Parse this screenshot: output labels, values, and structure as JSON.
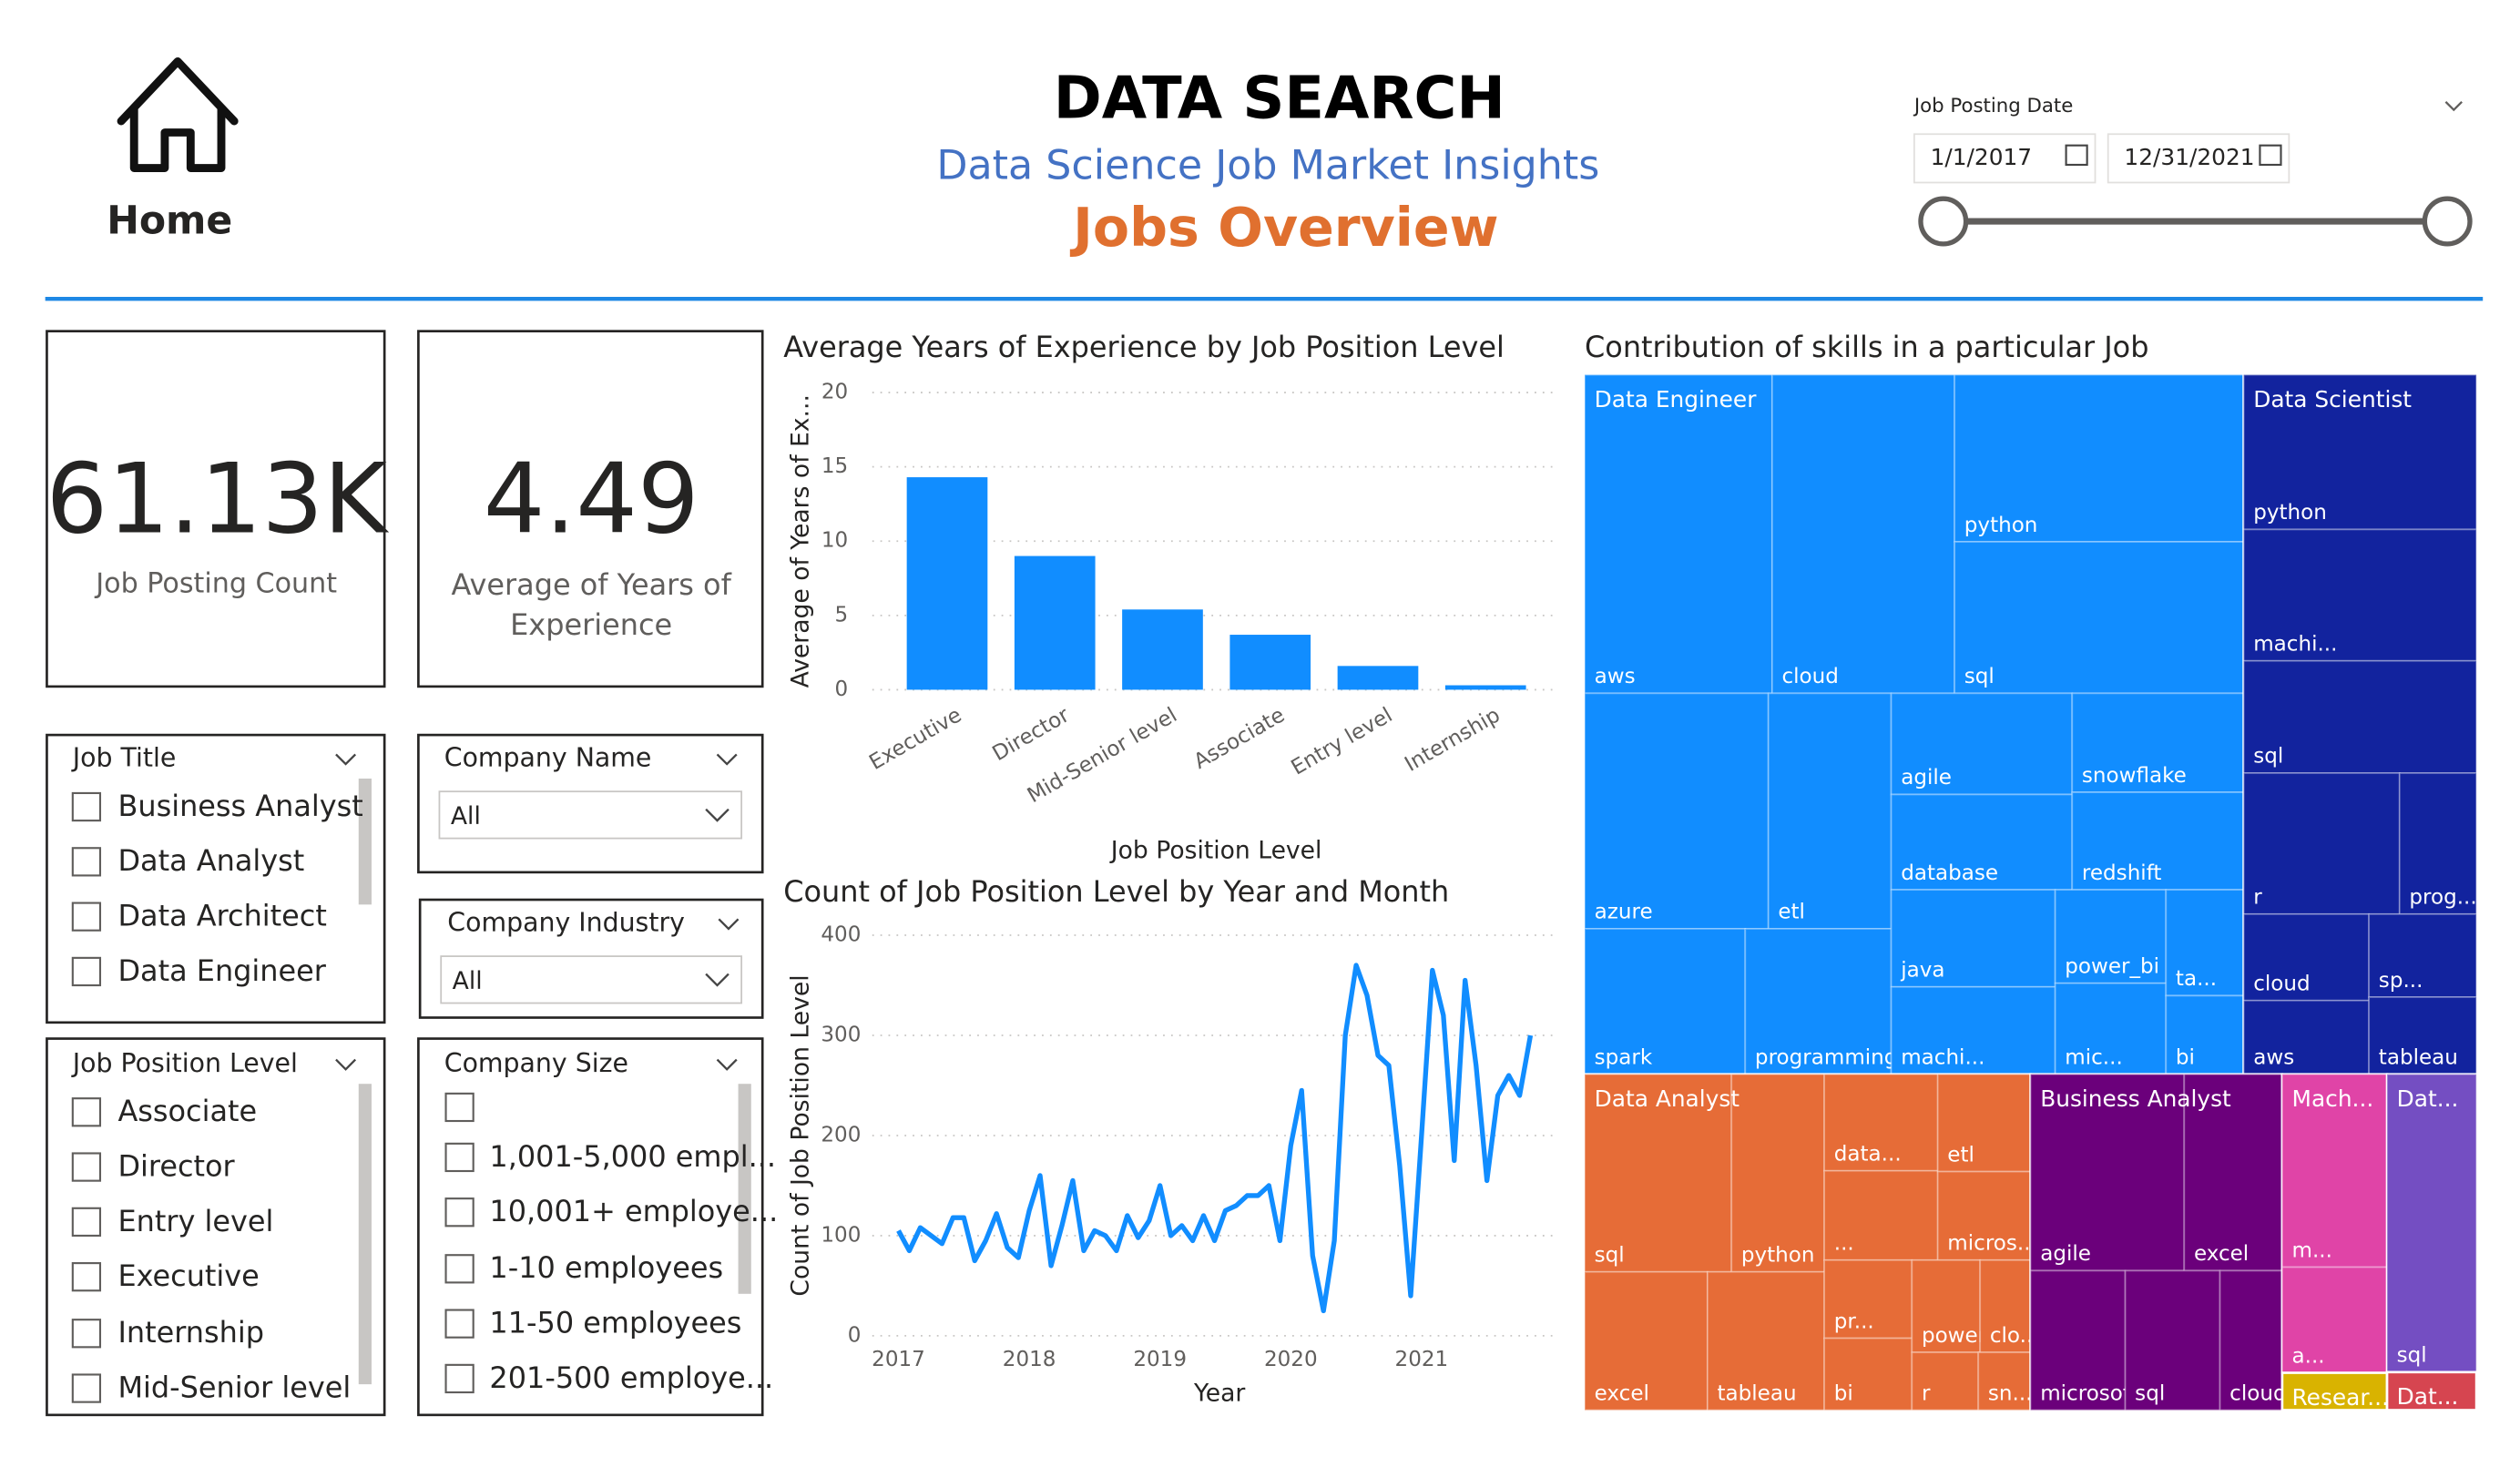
{
  "header": {
    "home": "Home",
    "title": "DATA SEARCH",
    "subtitle": "Data Science Job Market Insights",
    "page": "Jobs Overview"
  },
  "date_filter": {
    "label": "Job Posting Date",
    "start": "1/1/2017",
    "end": "12/31/2021"
  },
  "cards": [
    {
      "value": "61.13K",
      "label": "Job Posting Count"
    },
    {
      "value": "4.49",
      "label": "Average of Years of Experience"
    }
  ],
  "slicers": {
    "job_title": {
      "title": "Job Title",
      "items": [
        "Business Analyst",
        "Data Analyst",
        "Data Architect",
        "Data Engineer"
      ]
    },
    "company_name": {
      "title": "Company Name",
      "selection": "All"
    },
    "company_industry": {
      "title": "Company Industry",
      "selection": "All"
    },
    "job_position_level": {
      "title": "Job Position Level",
      "items": [
        "Associate",
        "Director",
        "Entry level",
        "Executive",
        "Internship",
        "Mid-Senior level"
      ]
    },
    "company_size": {
      "title": "Company Size",
      "items": [
        "1,001-5,000 empl...",
        "10,001+ employe...",
        "1-10 employees",
        "11-50 employees",
        "201-500 employe..."
      ]
    }
  },
  "chart_data": [
    {
      "type": "bar",
      "title": "Average Years of Experience by Job Position Level",
      "x_label": "Job Position Level",
      "y_label": "Average of Years of Ex...",
      "categories": [
        "Executive",
        "Director",
        "Mid-Senior level",
        "Associate",
        "Entry level",
        "Internship"
      ],
      "values": [
        14.3,
        9,
        5.4,
        3.7,
        1.6,
        0.3
      ],
      "color": "#118DFF",
      "ylim": [
        0,
        20
      ],
      "yticks": [
        0,
        5,
        10,
        15,
        20
      ],
      "grid": true
    },
    {
      "type": "line",
      "title": "Count of Job Position Level by Year and Month",
      "x_label": "Year",
      "y_label": "Count of Job Position Level",
      "color": "#118DFF",
      "x": [
        2017,
        2017.083,
        2017.167,
        2017.25,
        2017.333,
        2017.417,
        2017.5,
        2017.583,
        2017.667,
        2017.75,
        2017.833,
        2017.917,
        2018,
        2018.083,
        2018.167,
        2018.25,
        2018.333,
        2018.417,
        2018.5,
        2018.583,
        2018.667,
        2018.75,
        2018.833,
        2018.917,
        2019,
        2019.083,
        2019.167,
        2019.25,
        2019.333,
        2019.417,
        2019.5,
        2019.583,
        2019.667,
        2019.75,
        2019.833,
        2019.917,
        2020,
        2020.083,
        2020.167,
        2020.25,
        2020.333,
        2020.417,
        2020.5,
        2020.583,
        2020.667,
        2020.75,
        2020.833,
        2020.917,
        2021,
        2021.083,
        2021.167,
        2021.25,
        2021.333,
        2021.417,
        2021.5,
        2021.583,
        2021.667,
        2021.75,
        2021.833
      ],
      "values": [
        105,
        85,
        108,
        100,
        92,
        118,
        118,
        75,
        95,
        122,
        88,
        78,
        125,
        160,
        70,
        110,
        155,
        85,
        105,
        100,
        85,
        120,
        98,
        115,
        150,
        100,
        110,
        95,
        120,
        95,
        125,
        130,
        140,
        140,
        150,
        95,
        190,
        245,
        80,
        25,
        95,
        300,
        370,
        340,
        280,
        270,
        170,
        40,
        200,
        365,
        320,
        175,
        355,
        270,
        155,
        240,
        260,
        240,
        300
      ],
      "xlim": [
        2016.8,
        2022.05
      ],
      "xticks": [
        2017,
        2018,
        2019,
        2020,
        2021
      ],
      "ylim": [
        0,
        400
      ],
      "yticks": [
        0,
        100,
        200,
        300,
        400
      ],
      "grid": true
    },
    {
      "type": "treemap",
      "title": "Contribution of skills in a particular Job",
      "groups": [
        {
          "name": "Data Engineer",
          "color": "#118DFF",
          "value": 176.7,
          "items": [
            {
              "name": "aws",
              "value": 22.5
            },
            {
              "name": "cloud",
              "value": 21.9
            },
            {
              "name": "python",
              "value": 18.2
            },
            {
              "name": "sql",
              "value": 16.5
            },
            {
              "name": "azure",
              "value": 16.3
            },
            {
              "name": "etl",
              "value": 10.9
            },
            {
              "name": "spark",
              "value": 8.8
            },
            {
              "name": "programming",
              "value": 8
            },
            {
              "name": "agile",
              "value": 6.9
            },
            {
              "name": "database",
              "value": 6.5
            },
            {
              "name": "snowflake",
              "value": 6.4
            },
            {
              "name": "redshift",
              "value": 6.3
            },
            {
              "name": "java",
              "value": 6
            },
            {
              "name": "machi...",
              "value": 5.4
            },
            {
              "name": "power_bi",
              "value": 3.9
            },
            {
              "name": "mic...",
              "value": 3.8
            },
            {
              "name": "ta...",
              "value": 3.1
            },
            {
              "name": "bi",
              "value": 2.3
            }
          ]
        },
        {
          "name": "Data Scientist",
          "color": "#12239E",
          "value": 62.4,
          "items": [
            {
              "name": "python",
              "value": 11.3
            },
            {
              "name": "machi...",
              "value": 9.6
            },
            {
              "name": "sql",
              "value": 8.2
            },
            {
              "name": "r",
              "value": 6.9
            },
            {
              "name": "prog...",
              "value": 3.4
            },
            {
              "name": "cloud",
              "value": 3.4
            },
            {
              "name": "aws",
              "value": 2.9
            },
            {
              "name": "sp...",
              "value": 2.8
            },
            {
              "name": "tableau",
              "value": 2.6
            }
          ]
        },
        {
          "name": "Data Analyst",
          "color": "#E66C37",
          "value": 57.4,
          "items": [
            {
              "name": "sql",
              "value": 10.6
            },
            {
              "name": "python",
              "value": 6.7
            },
            {
              "name": "excel",
              "value": 6.2
            },
            {
              "name": "tableau",
              "value": 5.9
            },
            {
              "name": "data...",
              "value": 4
            },
            {
              "name": "...",
              "value": 3.7
            },
            {
              "name": "etl",
              "value": 3.3
            },
            {
              "name": "micros...",
              "value": 3
            },
            {
              "name": "pr...",
              "value": 2.5
            },
            {
              "name": "bi",
              "value": 2.3
            },
            {
              "name": "power...",
              "value": 2.3
            },
            {
              "name": "clo...",
              "value": 1.7
            },
            {
              "name": "r",
              "value": 1.4
            },
            {
              "name": "sn...",
              "value": 1.1
            }
          ]
        },
        {
          "name": "Business Analyst",
          "color": "#6B007B",
          "value": 32.4,
          "items": [
            {
              "name": "agile",
              "value": 8
            },
            {
              "name": "excel",
              "value": 5.1
            },
            {
              "name": "microsoft",
              "value": 3.5
            },
            {
              "name": "sql",
              "value": 3.5
            },
            {
              "name": "cloud",
              "value": 2.3
            }
          ]
        },
        {
          "name": "Mach...",
          "color": "#E044A7",
          "value": 12,
          "items": [
            {
              "name": "m...",
              "value": 4.2
            },
            {
              "name": "a...",
              "value": 2.3
            }
          ]
        },
        {
          "name": "Dat...",
          "color": "#744EC2",
          "value": 10.2,
          "items": [
            {
              "name": "sql",
              "value": 3
            }
          ]
        },
        {
          "name": "Resear...",
          "color": "#D9B300",
          "value": 1.5,
          "items": []
        },
        {
          "name": "Dat...",
          "color": "#D64550",
          "value": 1.3,
          "items": []
        }
      ]
    }
  ]
}
